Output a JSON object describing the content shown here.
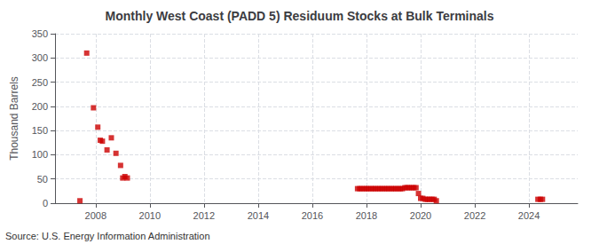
{
  "chart_data": {
    "type": "scatter",
    "title": "Monthly West Coast (PADD 5) Residuum Stocks at Bulk Terminals",
    "ylabel": "Thousand Barrels",
    "annotations": [
      "Source: U.S. Energy Information Administration"
    ],
    "color": "#cc0000",
    "marker": "square",
    "grid": true,
    "xlim": [
      2006.5,
      2025.8
    ],
    "xticks": [
      2008,
      2010,
      2012,
      2014,
      2016,
      2018,
      2020,
      2022,
      2024
    ],
    "ylim": [
      0,
      350
    ],
    "yticks": [
      0,
      50,
      100,
      150,
      200,
      250,
      300,
      350
    ],
    "x": [
      2007.42,
      2007.67,
      2007.92,
      2008.08,
      2008.17,
      2008.25,
      2008.42,
      2008.58,
      2008.75,
      2008.92,
      2009.0,
      2009.08,
      2009.17,
      2017.67,
      2017.75,
      2017.83,
      2017.92,
      2018.0,
      2018.08,
      2018.17,
      2018.25,
      2018.33,
      2018.42,
      2018.5,
      2018.58,
      2018.67,
      2018.75,
      2018.83,
      2018.92,
      2019.0,
      2019.08,
      2019.17,
      2019.25,
      2019.33,
      2019.42,
      2019.5,
      2019.58,
      2019.67,
      2019.75,
      2019.83,
      2019.92,
      2020.0,
      2020.08,
      2020.17,
      2020.25,
      2020.33,
      2020.42,
      2020.5,
      2020.58,
      2024.33,
      2024.42,
      2024.5
    ],
    "values": [
      5,
      310,
      197,
      157,
      130,
      128,
      110,
      135,
      103,
      78,
      52,
      55,
      52,
      30,
      30,
      30,
      30,
      30,
      30,
      30,
      30,
      30,
      30,
      30,
      30,
      30,
      30,
      30,
      30,
      30,
      30,
      30,
      30,
      30,
      32,
      32,
      32,
      32,
      32,
      32,
      20,
      10,
      10,
      8,
      8,
      8,
      8,
      8,
      5,
      8,
      8,
      8
    ]
  }
}
